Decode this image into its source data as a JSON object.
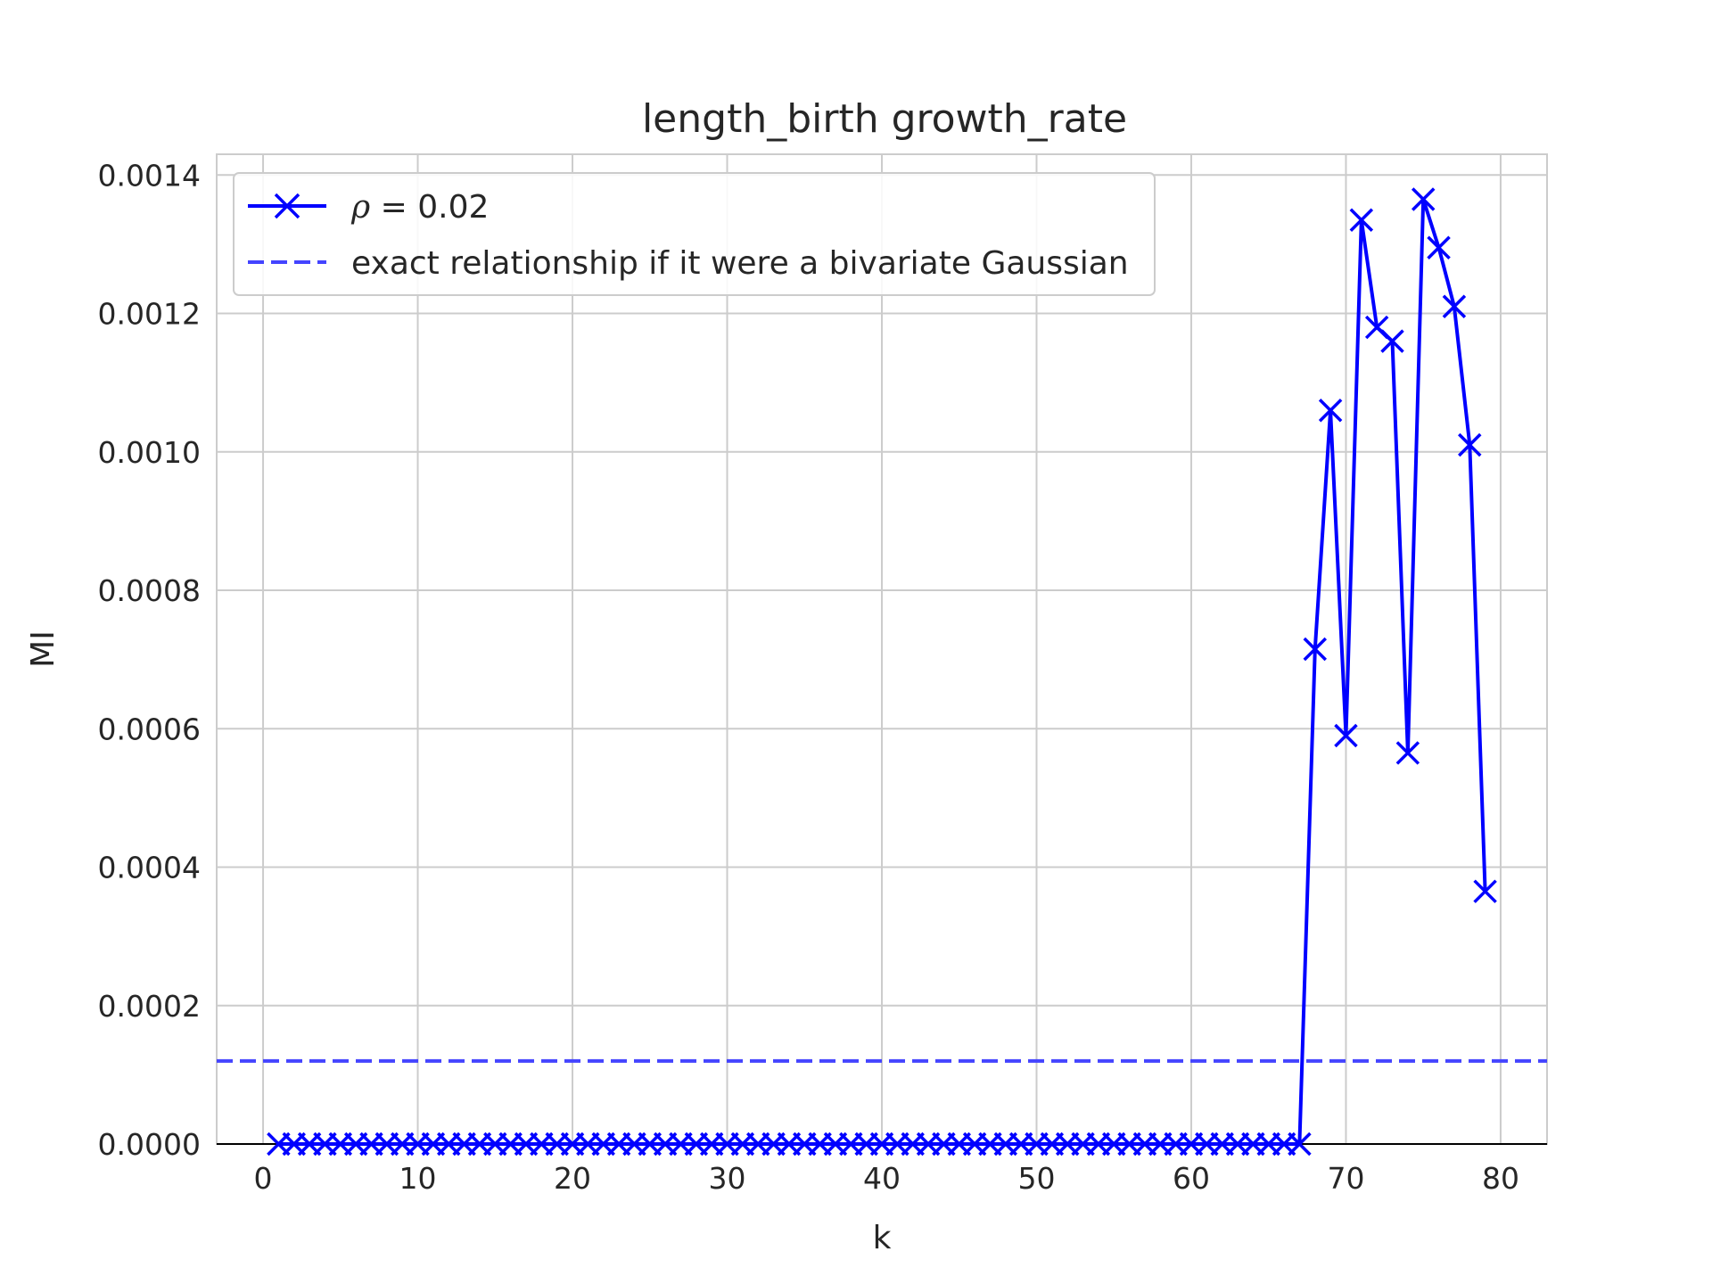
{
  "chart_data": {
    "type": "line",
    "title": "length_birth growth_rate",
    "xlabel": "k",
    "ylabel": "MI",
    "xlim": [
      -3,
      83
    ],
    "ylim": [
      0,
      0.00143
    ],
    "xticks": [
      0,
      10,
      20,
      30,
      40,
      50,
      60,
      70,
      80
    ],
    "xtick_labels": [
      "0",
      "10",
      "20",
      "30",
      "40",
      "50",
      "60",
      "70",
      "80"
    ],
    "yticks": [
      0,
      0.0002,
      0.0004,
      0.0006,
      0.0008,
      0.001,
      0.0012,
      0.0014
    ],
    "ytick_labels": [
      "0.0000",
      "0.0002",
      "0.0004",
      "0.0006",
      "0.0008",
      "0.0010",
      "0.0012",
      "0.0014"
    ],
    "grid": true,
    "legend_position": "top-left",
    "series": [
      {
        "name": "ρ = 0.02",
        "legend_math_symbol": "ρ",
        "legend_math_rest": " = 0.02",
        "style": "solid",
        "marker": "x",
        "color": "#0000ff",
        "x": [
          1,
          2,
          3,
          4,
          5,
          6,
          7,
          8,
          9,
          10,
          11,
          12,
          13,
          14,
          15,
          16,
          17,
          18,
          19,
          20,
          21,
          22,
          23,
          24,
          25,
          26,
          27,
          28,
          29,
          30,
          31,
          32,
          33,
          34,
          35,
          36,
          37,
          38,
          39,
          40,
          41,
          42,
          43,
          44,
          45,
          46,
          47,
          48,
          49,
          50,
          51,
          52,
          53,
          54,
          55,
          56,
          57,
          58,
          59,
          60,
          61,
          62,
          63,
          64,
          65,
          66,
          67,
          68,
          69,
          70,
          71,
          72,
          73,
          74,
          75,
          76,
          77,
          78,
          79
        ],
        "y": [
          0,
          0,
          0,
          0,
          0,
          0,
          0,
          0,
          0,
          0,
          0,
          0,
          0,
          0,
          0,
          0,
          0,
          0,
          0,
          0,
          0,
          0,
          0,
          0,
          0,
          0,
          0,
          0,
          0,
          0,
          0,
          0,
          0,
          0,
          0,
          0,
          0,
          0,
          0,
          0,
          0,
          0,
          0,
          0,
          0,
          0,
          0,
          0,
          0,
          0,
          0,
          0,
          0,
          0,
          0,
          0,
          0,
          0,
          0,
          0,
          0,
          0,
          0,
          0,
          0,
          0,
          0,
          0.000715,
          0.00106,
          0.00059,
          0.001335,
          0.00118,
          0.00116,
          0.000565,
          0.001365,
          0.001295,
          0.00121,
          0.00101,
          0.000365
        ]
      },
      {
        "name": "exact relationship if it were a bivariate Gaussian",
        "style": "dashed",
        "color": "#4444ff",
        "y_constant": 0.00012
      }
    ]
  }
}
